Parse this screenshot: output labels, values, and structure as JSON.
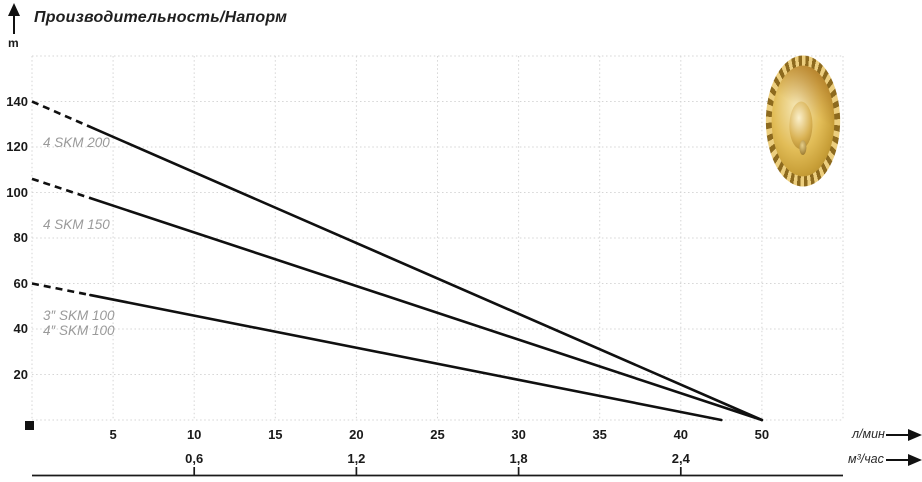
{
  "header": {
    "title": "Производительность/Напорм",
    "y_axis_unit": "m"
  },
  "axis_units": {
    "primary": "л/мин",
    "secondary": "м³/час"
  },
  "colors": {
    "curve": "#101010",
    "grid": "#d5d5d5",
    "curve_label_gray": "#9a9a9a",
    "impeller_gold": "#d2a63e"
  },
  "chart_data": {
    "type": "line",
    "title": "Производительность/Напорм",
    "ylabel": "m",
    "xlabel_primary": "л/мин",
    "xlabel_secondary": "м³/час",
    "ylim": [
      0,
      160
    ],
    "grid": "dotted, every 20 m horizontal and every 5 л/мин vertical",
    "x_axis_note": "labels run 5..40 at even grid steps, then label 50 sits one grid step after 40",
    "y_ticks_m": [
      20,
      40,
      60,
      80,
      100,
      120,
      140
    ],
    "x_ticks_lpm": [
      5,
      10,
      15,
      20,
      25,
      30,
      35,
      40,
      50
    ],
    "x_ticks_m3h": [
      {
        "label": "0,6",
        "at_lpm": 10
      },
      {
        "label": "1,2",
        "at_lpm": 20
      },
      {
        "label": "1,8",
        "at_lpm": 30
      },
      {
        "label": "2,4",
        "at_lpm": 40
      }
    ],
    "series": [
      {
        "name": "4 SKM 200",
        "points_lpm_m": [
          [
            0,
            140
          ],
          [
            50,
            0
          ]
        ],
        "dashed_until_lpm": 3.6
      },
      {
        "name": "4 SKM 150",
        "points_lpm_m": [
          [
            0,
            106
          ],
          [
            50,
            0
          ]
        ],
        "dashed_until_lpm": 3.6
      },
      {
        "name": "3″/4″ SKM 100",
        "points_lpm_m": [
          [
            0,
            60
          ],
          [
            45,
            0
          ]
        ],
        "dashed_until_lpm": 3.6
      }
    ],
    "curve_labels": [
      "4 SKM 200",
      "4 SKM 150",
      "3″ SKM 100",
      "4″ SKM 100"
    ],
    "origin_marker": "black square at axis origin",
    "legend_position": "inline labels left of curves"
  }
}
